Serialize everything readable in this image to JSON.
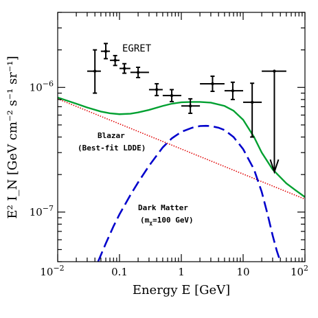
{
  "chart_data": {
    "type": "scatter",
    "title": "",
    "xlabel": "Energy E [GeV]",
    "ylabel": "E² I_N [GeV cm⁻² s⁻¹ sr⁻¹]",
    "xscale": "log",
    "yscale": "log",
    "xlim": [
      0.01,
      100
    ],
    "ylim": [
      4e-08,
      4e-06
    ],
    "grid": false,
    "x_ticks": [
      {
        "value": 0.01,
        "base": "10",
        "exp": "−2"
      },
      {
        "value": 0.1,
        "base": "0.1",
        "exp": ""
      },
      {
        "value": 1,
        "base": "1",
        "exp": ""
      },
      {
        "value": 10,
        "base": "10",
        "exp": ""
      },
      {
        "value": 100,
        "base": "10",
        "exp": "2"
      }
    ],
    "y_ticks": [
      {
        "value": 1e-07,
        "base": "10",
        "exp": "−7"
      },
      {
        "value": 1e-06,
        "base": "10",
        "exp": "−6"
      }
    ],
    "annotations": {
      "egret": "EGRET",
      "blazar_line1": "Blazar",
      "blazar_line2": "(Best-fit LDDE)",
      "dm_line1": "Dark Matter",
      "dm_line2_prefix": "(m",
      "dm_line2_sub": "χ",
      "dm_line2_suffix": "=100 GeV)"
    },
    "egret_points": [
      {
        "x": 0.04,
        "xlo": 0.03,
        "xhi": 0.05,
        "y": 1.35e-06,
        "ylo": 9e-07,
        "yhi": 2e-06
      },
      {
        "x": 0.06,
        "xlo": 0.05,
        "xhi": 0.07,
        "y": 1.95e-06,
        "ylo": 1.7e-06,
        "yhi": 2.25e-06
      },
      {
        "x": 0.085,
        "xlo": 0.07,
        "xhi": 0.1,
        "y": 1.65e-06,
        "ylo": 1.5e-06,
        "yhi": 1.8e-06
      },
      {
        "x": 0.12,
        "xlo": 0.1,
        "xhi": 0.15,
        "y": 1.42e-06,
        "ylo": 1.3e-06,
        "yhi": 1.55e-06
      },
      {
        "x": 0.2,
        "xlo": 0.15,
        "xhi": 0.3,
        "y": 1.32e-06,
        "ylo": 1.2e-06,
        "yhi": 1.45e-06
      },
      {
        "x": 0.4,
        "xlo": 0.3,
        "xhi": 0.5,
        "y": 9.6e-07,
        "ylo": 8.6e-07,
        "yhi": 1.07e-06
      },
      {
        "x": 0.7,
        "xlo": 0.5,
        "xhi": 1.0,
        "y": 8.6e-07,
        "ylo": 7.7e-07,
        "yhi": 9.6e-07
      },
      {
        "x": 1.4,
        "xlo": 1.0,
        "xhi": 2.0,
        "y": 7.1e-07,
        "ylo": 6.2e-07,
        "yhi": 8.1e-07
      },
      {
        "x": 3.2,
        "xlo": 2.0,
        "xhi": 5.0,
        "y": 1.07e-06,
        "ylo": 9.3e-07,
        "yhi": 1.23e-06
      },
      {
        "x": 6.8,
        "xlo": 5.0,
        "xhi": 10.0,
        "y": 9.4e-07,
        "ylo": 8e-07,
        "yhi": 1.1e-06
      },
      {
        "x": 14,
        "xlo": 10,
        "xhi": 20,
        "y": 7.6e-07,
        "ylo": 4e-07,
        "yhi": 1.08e-06
      }
    ],
    "upper_limit": {
      "x": 32,
      "xlo": 20,
      "xhi": 50,
      "y": 1.35e-06,
      "y_arrow_end": 2.1e-07
    },
    "series": [
      {
        "name": "Blazar",
        "color": "#e00000",
        "style": "dotted",
        "x": [
          0.01,
          100
        ],
        "y": [
          8.1e-07,
          1.27e-07
        ]
      },
      {
        "name": "Dark Matter",
        "color": "#0000cc",
        "style": "dashed",
        "x": [
          0.045,
          0.06,
          0.08,
          0.1,
          0.15,
          0.2,
          0.3,
          0.5,
          0.7,
          1.0,
          1.5,
          2.0,
          2.5,
          3.0,
          4.0,
          5.0,
          7.0,
          10,
          15,
          20,
          25,
          30,
          35,
          40
        ],
        "y": [
          4e-08,
          5.6e-08,
          7.7e-08,
          9.6e-08,
          1.37e-07,
          1.73e-07,
          2.35e-07,
          3.3e-07,
          3.9e-07,
          4.4e-07,
          4.75e-07,
          4.9e-07,
          4.92e-07,
          4.9e-07,
          4.75e-07,
          4.55e-07,
          4e-07,
          3.2e-07,
          2.2e-07,
          1.45e-07,
          9.5e-08,
          6.5e-08,
          4.9e-08,
          4e-08
        ]
      },
      {
        "name": "Total",
        "color": "#00a030",
        "style": "solid",
        "x": [
          0.01,
          0.02,
          0.03,
          0.05,
          0.07,
          0.1,
          0.15,
          0.2,
          0.3,
          0.5,
          0.7,
          1.0,
          1.5,
          2.0,
          3.0,
          5.0,
          7.0,
          10,
          15,
          20,
          30,
          50,
          70,
          100
        ],
        "y": [
          8.3e-07,
          7.4e-07,
          6.9e-07,
          6.4e-07,
          6.2e-07,
          6.1e-07,
          6.15e-07,
          6.3e-07,
          6.6e-07,
          7.1e-07,
          7.4e-07,
          7.6e-07,
          7.65e-07,
          7.65e-07,
          7.55e-07,
          7.1e-07,
          6.5e-07,
          5.5e-07,
          4e-07,
          3e-07,
          2.2e-07,
          1.7e-07,
          1.5e-07,
          1.32e-07
        ]
      }
    ]
  }
}
